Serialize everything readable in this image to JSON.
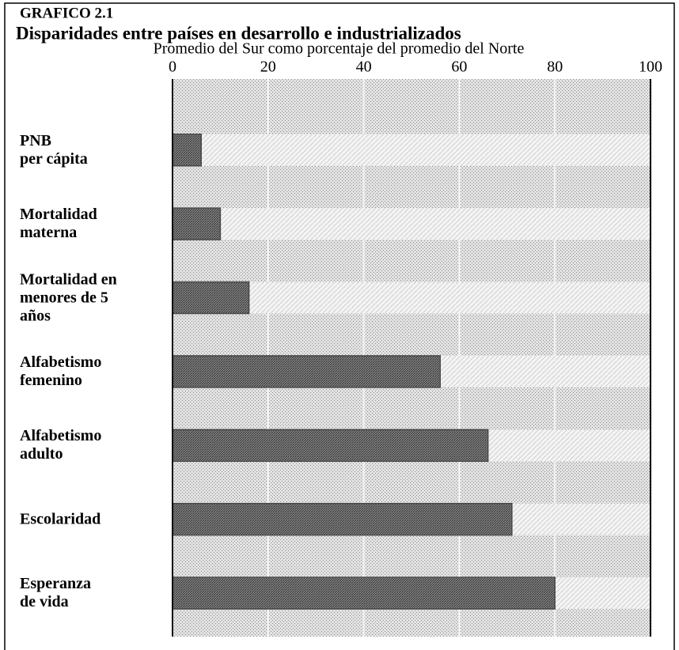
{
  "chart_data": {
    "type": "bar",
    "orientation": "horizontal",
    "title": "GRAFICO 2.1",
    "subtitle": "Disparidades entre países en desarrollo e industrializados",
    "x_label": "Promedio del Sur como porcentaje del promedio del Norte",
    "categories": [
      "PNB\nper cápita",
      "Mortalidad\nmaterna",
      "Mortalidad en\nmenores de 5\naños",
      "Alfabetismo\nfemenino",
      "Alfabetismo\nadulto",
      "Escolaridad",
      "Esperanza\nde vida"
    ],
    "values": [
      6,
      10,
      16,
      56,
      66,
      71,
      80
    ],
    "color": "#4a4a4a",
    "xlim": [
      0,
      100
    ],
    "xticks": [
      0,
      20,
      40,
      60,
      80,
      100
    ],
    "grid": true
  }
}
